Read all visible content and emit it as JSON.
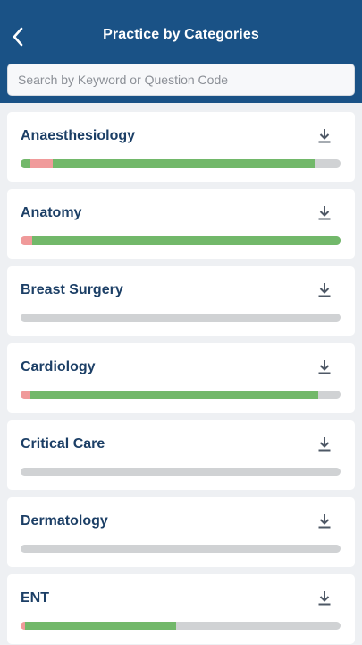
{
  "header": {
    "title": "Practice by Categories"
  },
  "search": {
    "placeholder": "Search by Keyword or Question Code",
    "value": ""
  },
  "colors": {
    "header_bg": "#1a5286",
    "correct": "#72b86a",
    "incorrect": "#f09a9a",
    "track": "#d0d2d4"
  },
  "categories": [
    {
      "label": "Anaesthesiology",
      "progress": {
        "unanswered_start": 0.03,
        "incorrect": 0.07,
        "correct": 0.82
      }
    },
    {
      "label": "Anatomy",
      "progress": {
        "unanswered_start": 0.0,
        "incorrect": 0.035,
        "correct": 0.965
      }
    },
    {
      "label": "Breast Surgery",
      "progress": {
        "unanswered_start": 0.0,
        "incorrect": 0.0,
        "correct": 0.0
      }
    },
    {
      "label": "Cardiology",
      "progress": {
        "unanswered_start": 0.0,
        "incorrect": 0.03,
        "correct": 0.9
      }
    },
    {
      "label": "Critical Care",
      "progress": {
        "unanswered_start": 0.0,
        "incorrect": 0.0,
        "correct": 0.0
      }
    },
    {
      "label": "Dermatology",
      "progress": {
        "unanswered_start": 0.0,
        "incorrect": 0.0,
        "correct": 0.0
      }
    },
    {
      "label": "ENT",
      "progress": {
        "unanswered_start": 0.0,
        "incorrect": 0.015,
        "correct": 0.47
      }
    }
  ]
}
